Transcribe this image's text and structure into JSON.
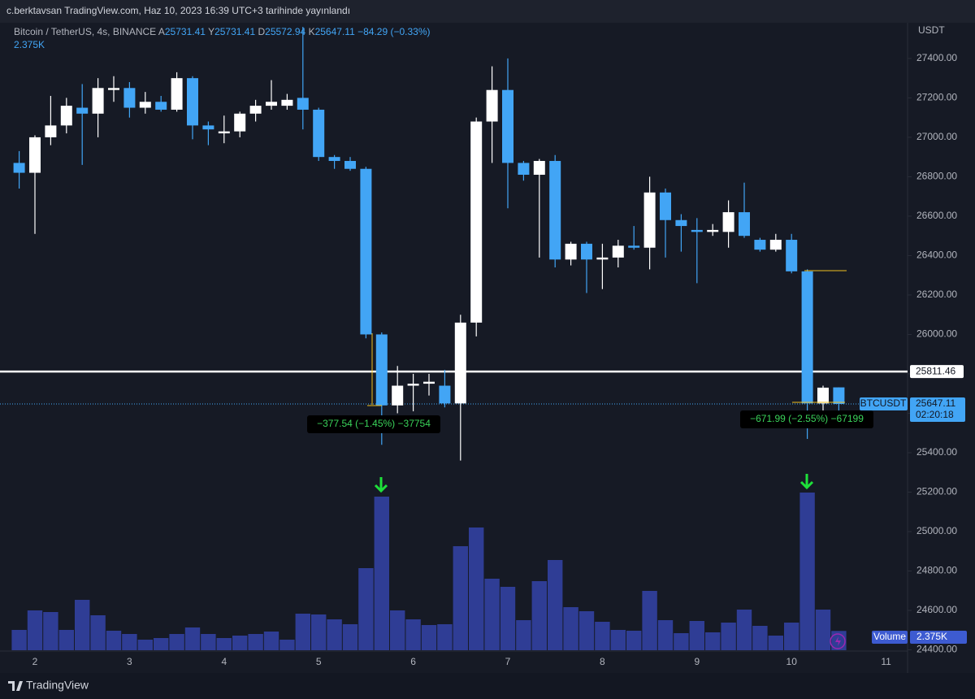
{
  "header": {
    "publisher": "c.berktavsan TradingView.com, Haz 10, 2023 16:39 UTC+3 tarihinde yayınlandı"
  },
  "footer": {
    "brand": "TradingView"
  },
  "chart_data": {
    "type": "candlestick",
    "title": "Bitcoin / TetherUS, 4s, BINANCE",
    "ohlc_labels": [
      "A",
      "Y",
      "D",
      "K"
    ],
    "change_label": "−84.29 (−0.33%)",
    "y_unit": "USDT",
    "categories": [
      null,
      "2",
      null,
      null,
      null,
      null,
      null,
      "3",
      null,
      null,
      null,
      null,
      null,
      "4",
      null,
      null,
      null,
      null,
      null,
      "5",
      null,
      null,
      null,
      null,
      null,
      "6",
      null,
      null,
      null,
      null,
      null,
      "7",
      null,
      null,
      null,
      null,
      null,
      "8",
      null,
      null,
      null,
      null,
      null,
      "9",
      null,
      null,
      null,
      null,
      null,
      "10",
      null,
      null,
      null,
      null,
      null,
      "11"
    ],
    "open": [
      26870,
      26820,
      27000,
      27060,
      27150,
      27120,
      27240,
      27250,
      27150,
      27180,
      27140,
      27300,
      27060,
      27020,
      27030,
      27120,
      27160,
      27160,
      27200,
      27140,
      26900,
      26880,
      26840,
      26000,
      25640,
      25740,
      25750,
      25740,
      25650,
      26060,
      27080,
      27240,
      26870,
      26810,
      26880,
      26380,
      26460,
      26380,
      26390,
      26450,
      26440,
      26720,
      26580,
      26530,
      26520,
      26520,
      26620,
      26480,
      26430,
      26480,
      26320,
      25650,
      25731.41,
      null,
      null,
      null
    ],
    "high": [
      26930,
      27010,
      27210,
      27200,
      27270,
      27300,
      27310,
      27280,
      27230,
      27210,
      27330,
      27310,
      27080,
      27110,
      27130,
      27190,
      27290,
      27220,
      27560,
      27150,
      26910,
      26900,
      26850,
      26010,
      25840,
      25800,
      25800,
      25820,
      26100,
      27100,
      27360,
      27400,
      26880,
      26890,
      26910,
      26470,
      26470,
      26460,
      26480,
      26550,
      26800,
      26740,
      26610,
      26590,
      26560,
      26680,
      26770,
      26490,
      26510,
      26510,
      26330,
      25740,
      25731.41,
      null,
      null,
      null
    ],
    "low": [
      26740,
      26510,
      26960,
      27020,
      26860,
      27000,
      27180,
      27100,
      27120,
      27130,
      27130,
      26990,
      26960,
      26970,
      27000,
      27080,
      27140,
      27140,
      27040,
      26880,
      26840,
      26830,
      25980,
      25440,
      25600,
      25610,
      25690,
      25630,
      25360,
      25990,
      26870,
      26640,
      26780,
      26390,
      26340,
      26350,
      26210,
      26230,
      26340,
      26430,
      26330,
      26390,
      26420,
      26260,
      26500,
      26440,
      26490,
      26420,
      26420,
      26310,
      25470,
      25600,
      25572.94,
      null,
      null,
      null
    ],
    "close": [
      26820,
      27000,
      27060,
      27160,
      27120,
      27250,
      27250,
      27150,
      27180,
      27140,
      27300,
      27060,
      27040,
      27030,
      27120,
      27160,
      27180,
      27190,
      27140,
      26900,
      26880,
      26840,
      26000,
      25640,
      25740,
      25750,
      25760,
      25650,
      26060,
      27080,
      27240,
      26870,
      26810,
      26880,
      26380,
      26460,
      26380,
      26390,
      26450,
      26440,
      26720,
      26580,
      26550,
      26520,
      26530,
      26620,
      26500,
      26430,
      26480,
      26320,
      25650,
      25730,
      25647.11,
      null,
      null,
      null
    ],
    "up_color": "#ffffff",
    "down_color": "#42a5f5",
    "volume": {
      "name": "Volume",
      "color": "#2f3d95",
      "values": [
        2500,
        4900,
        4700,
        2500,
        6200,
        4300,
        2400,
        2000,
        1300,
        1500,
        2000,
        2800,
        2000,
        1500,
        1800,
        2000,
        2300,
        1300,
        4500,
        4400,
        3800,
        3200,
        10100,
        18900,
        4900,
        3800,
        3100,
        3200,
        12800,
        15100,
        8800,
        7800,
        3700,
        8500,
        11100,
        5300,
        4800,
        3500,
        2500,
        2400,
        7300,
        3700,
        2100,
        3600,
        2200,
        3400,
        5000,
        3000,
        1800,
        3400,
        19400,
        5000,
        2375,
        null,
        null,
        null
      ],
      "value_labels": [
        null,
        null,
        null,
        null,
        null,
        null,
        null,
        null,
        null,
        null,
        null,
        null,
        null,
        null,
        null,
        null,
        null,
        null,
        null,
        null,
        null,
        null,
        null,
        null,
        null,
        null,
        null,
        null,
        null,
        null,
        null,
        null,
        null,
        null,
        null,
        null,
        null,
        null,
        null,
        null,
        null,
        null,
        null,
        null,
        null,
        null,
        null,
        null,
        null,
        null,
        null,
        null,
        "2.375K",
        null,
        null,
        null
      ]
    },
    "ylim": [
      24398,
      27581
    ],
    "yticks": [
      {
        "value": 24400,
        "label": "24400.00"
      },
      {
        "value": 24600,
        "label": "24600.00"
      },
      {
        "value": 24800,
        "label": "24800.00"
      },
      {
        "value": 25000,
        "label": "25000.00"
      },
      {
        "value": 25200,
        "label": "25200.00"
      },
      {
        "value": 25400,
        "label": "25400.00"
      },
      {
        "value": 25600,
        "label": "25600.00"
      },
      {
        "value": 25800,
        "label": "25800.00"
      },
      {
        "value": 26000,
        "label": "26000.00"
      },
      {
        "value": 26200,
        "label": "26200.00"
      },
      {
        "value": 26400,
        "label": "26400.00"
      },
      {
        "value": 26600,
        "label": "26600.00"
      },
      {
        "value": 26800,
        "label": "26800.00"
      },
      {
        "value": 27000,
        "label": "27000.00"
      },
      {
        "value": 27200,
        "label": "27200.00"
      },
      {
        "value": 27400,
        "label": "27400.00"
      }
    ],
    "price_line": {
      "value": 25811.46,
      "color": "#ffffff"
    },
    "last_price": {
      "name": "BTCUSDT",
      "value": 25647.11,
      "countdown": "02:20:18"
    },
    "annotations": [
      "−377.54 (−1.45%) −37754",
      "−671.99 (−2.55%) −67199"
    ]
  }
}
